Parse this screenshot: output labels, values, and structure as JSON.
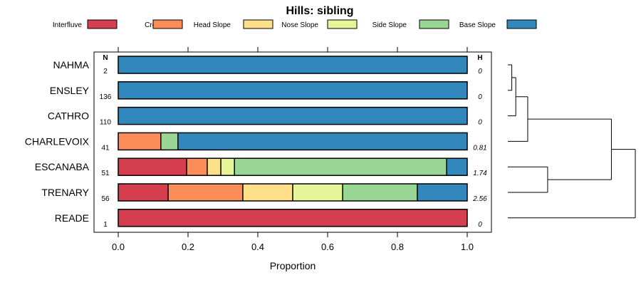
{
  "chart_data": {
    "type": "bar",
    "orientation": "horizontal",
    "stacked": true,
    "title": "Hills: sibling",
    "xlabel": "Proportion",
    "xlim": [
      0,
      1
    ],
    "xticks": [
      "0.0",
      "0.2",
      "0.4",
      "0.6",
      "0.8",
      "1.0"
    ],
    "n_header": "N",
    "h_header": "H",
    "categories": [
      "NAHMA",
      "ENSLEY",
      "CATHRO",
      "CHARLEVOIX",
      "ESCANABA",
      "TRENARY",
      "READE"
    ],
    "n_values": [
      "2",
      "136",
      "110",
      "41",
      "51",
      "56",
      "1"
    ],
    "h_values": [
      "0",
      "0",
      "0",
      "0.81",
      "1.74",
      "2.56",
      "0"
    ],
    "series": [
      {
        "name": "Interfluve",
        "color": "#d53e4f",
        "values": [
          0,
          0,
          0,
          0,
          0.196,
          0.143,
          1.0
        ]
      },
      {
        "name": "Crest",
        "color": "#fc8d59",
        "values": [
          0,
          0,
          0,
          0.122,
          0.059,
          0.214,
          0
        ]
      },
      {
        "name": "Head Slope",
        "color": "#fee08b",
        "values": [
          0,
          0,
          0,
          0,
          0.039,
          0.143,
          0
        ]
      },
      {
        "name": "Nose Slope",
        "color": "#e6f598",
        "values": [
          0,
          0,
          0,
          0,
          0.039,
          0.143,
          0
        ]
      },
      {
        "name": "Side Slope",
        "color": "#99d594",
        "values": [
          0,
          0,
          0,
          0.049,
          0.608,
          0.214,
          0
        ]
      },
      {
        "name": "Base Slope",
        "color": "#3288bd",
        "values": [
          1.0,
          1.0,
          1.0,
          0.829,
          0.059,
          0.143,
          0
        ]
      }
    ],
    "legend_position": "top",
    "dendrogram": {
      "labels": [
        "NAHMA",
        "ENSLEY",
        "CATHRO",
        "CHARLEVOIX",
        "ESCANABA",
        "TRENARY",
        "READE"
      ],
      "merges": [
        [
          0,
          1,
          0.05
        ],
        [
          7,
          2,
          0.1
        ],
        [
          8,
          3,
          0.25
        ],
        [
          4,
          5,
          0.5
        ],
        [
          9,
          10,
          1.3
        ],
        [
          11,
          6,
          1.6
        ]
      ],
      "max_height": 1.6
    }
  }
}
